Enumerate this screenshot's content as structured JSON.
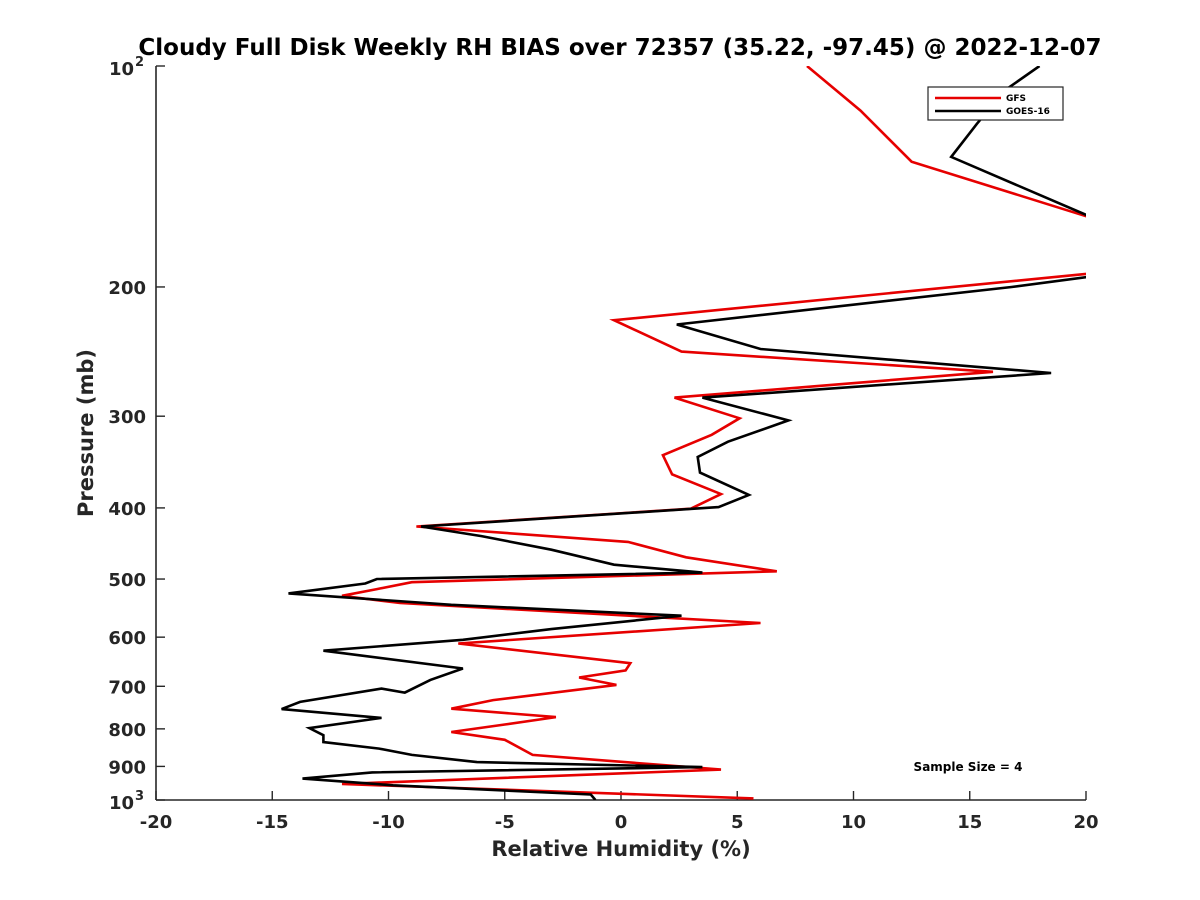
{
  "chart_data": {
    "type": "line",
    "title": "Cloudy Full Disk Weekly RH BIAS over 72357 (35.22, -97.45) @ 2022-12-07",
    "xlabel": "Relative Humidity (%)",
    "ylabel": "Pressure (mb)",
    "xlim": [
      -20,
      20
    ],
    "ylim": [
      100,
      1000
    ],
    "y_scale": "log",
    "y_reversed": true,
    "grid": false,
    "legend_position": "top-right",
    "annotation": "Sample Size = 4",
    "x_ticks": [
      -20,
      -15,
      -10,
      -5,
      0,
      5,
      10,
      15,
      20
    ],
    "x_tick_labels": [
      "-20",
      "-15",
      "-10",
      "-5",
      "0",
      "5",
      "10",
      "15",
      "20"
    ],
    "y_ticks": [
      {
        "value": 100,
        "base": "10",
        "exp": "2"
      },
      {
        "value": 200,
        "label": "200"
      },
      {
        "value": 300,
        "label": "300"
      },
      {
        "value": 400,
        "label": "400"
      },
      {
        "value": 500,
        "label": "500"
      },
      {
        "value": 600,
        "label": "600"
      },
      {
        "value": 700,
        "label": "700"
      },
      {
        "value": 800,
        "label": "800"
      },
      {
        "value": 900,
        "label": "900"
      },
      {
        "value": 1000,
        "base": "10",
        "exp": "3"
      }
    ],
    "series": [
      {
        "name": "GFS",
        "color": "#e60000",
        "segments": [
          [
            [
              8.0,
              100
            ],
            [
              10.3,
              115
            ],
            [
              12.5,
              135
            ],
            [
              20.5,
              162
            ]
          ],
          [
            [
              20.5,
              190
            ],
            [
              20.0,
              192
            ],
            [
              -0.3,
              222
            ],
            [
              2.6,
              245
            ],
            [
              16.0,
              261
            ],
            [
              2.3,
              283
            ],
            [
              5.1,
              302
            ],
            [
              3.9,
              318
            ],
            [
              1.8,
              339
            ],
            [
              2.2,
              360
            ],
            [
              4.3,
              383
            ],
            [
              3.0,
              401
            ],
            [
              -8.8,
              424
            ],
            [
              0.3,
              445
            ],
            [
              2.8,
              467
            ],
            [
              6.7,
              488
            ],
            [
              -9.0,
              505
            ],
            [
              -10.5,
              516
            ],
            [
              -12.0,
              527
            ],
            [
              -9.5,
              539
            ],
            [
              6.0,
              574
            ],
            [
              -7.0,
              612
            ],
            [
              0.4,
              651
            ],
            [
              0.2,
              666
            ],
            [
              -1.8,
              681
            ],
            [
              -0.2,
              697
            ],
            [
              -5.5,
              731
            ],
            [
              -7.3,
              751
            ],
            [
              -2.8,
              771
            ],
            [
              -5.0,
              789
            ],
            [
              -7.3,
              808
            ],
            [
              -5.0,
              828
            ],
            [
              -3.8,
              868
            ],
            [
              4.3,
              909
            ],
            [
              -12.0,
              951
            ],
            [
              5.7,
              995
            ]
          ]
        ]
      },
      {
        "name": "GOES-16",
        "color": "#000000",
        "segments": [
          [
            [
              18.0,
              100
            ],
            [
              16.5,
              108
            ],
            [
              15.3,
              120
            ],
            [
              14.2,
              133
            ],
            [
              20.5,
              162
            ]
          ],
          [
            [
              20.5,
              193
            ],
            [
              16.8,
              200
            ],
            [
              2.4,
              225
            ],
            [
              6.0,
              243
            ],
            [
              18.5,
              262
            ],
            [
              3.5,
              283
            ],
            [
              7.2,
              304
            ],
            [
              4.6,
              325
            ],
            [
              3.3,
              341
            ],
            [
              3.4,
              358
            ],
            [
              5.5,
              384
            ],
            [
              4.2,
              399
            ],
            [
              -8.6,
              424
            ],
            [
              -6.0,
              437
            ],
            [
              -3.0,
              456
            ],
            [
              -0.3,
              478
            ],
            [
              3.5,
              490
            ],
            [
              -10.5,
              500
            ],
            [
              -11.0,
              507
            ],
            [
              -14.3,
              523
            ],
            [
              -7.3,
              542
            ],
            [
              2.6,
              561
            ],
            [
              -3.0,
              585
            ],
            [
              -6.8,
              605
            ],
            [
              -12.8,
              626
            ],
            [
              -6.8,
              662
            ],
            [
              -8.2,
              686
            ],
            [
              -9.3,
              714
            ],
            [
              -10.3,
              705
            ],
            [
              -13.8,
              735
            ],
            [
              -14.6,
              752
            ],
            [
              -10.3,
              773
            ],
            [
              -13.4,
              798
            ],
            [
              -12.8,
              816
            ],
            [
              -12.8,
              834
            ],
            [
              -10.4,
              851
            ],
            [
              -9.0,
              868
            ],
            [
              -6.2,
              888
            ],
            [
              3.5,
              902
            ],
            [
              -10.7,
              917
            ],
            [
              -13.7,
              935
            ],
            [
              -9.8,
              955
            ],
            [
              -1.3,
              983
            ],
            [
              -1.1,
              1000
            ]
          ]
        ]
      }
    ]
  }
}
